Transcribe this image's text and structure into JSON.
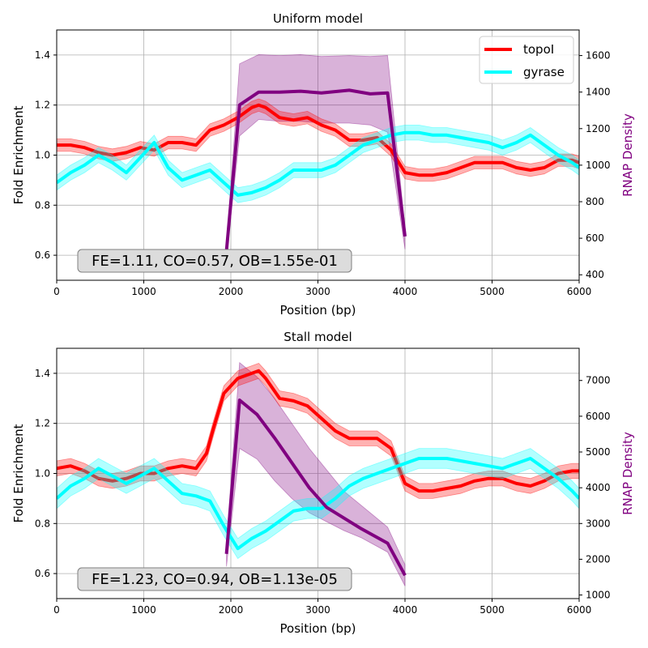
{
  "chart_data": [
    {
      "type": "line",
      "title": "Uniform model",
      "xlabel": "Position (bp)",
      "ylabel": "Fold Enrichment",
      "ylabel_right": "RNAP Density",
      "xlim": [
        0,
        6000
      ],
      "ylim": [
        0.5,
        1.5
      ],
      "ylim_right": [
        370,
        1740
      ],
      "x_ticks": [
        0,
        1000,
        2000,
        3000,
        4000,
        5000,
        6000
      ],
      "y_ticks": [
        0.6,
        0.8,
        1.0,
        1.2,
        1.4
      ],
      "y_ticks_right": [
        400,
        600,
        800,
        1000,
        1200,
        1400,
        1600
      ],
      "grid": true,
      "legend": "top-right",
      "annotation": "FE=1.11, CO=0.57, OB=1.55e-01",
      "series": [
        {
          "name": "topoI",
          "axis": "left",
          "color": "#ff0000",
          "x": [
            0,
            160,
            320,
            480,
            640,
            800,
            960,
            1120,
            1280,
            1440,
            1600,
            1760,
            1920,
            2080,
            2240,
            2320,
            2400,
            2560,
            2720,
            2880,
            3040,
            3200,
            3360,
            3520,
            3680,
            3840,
            4000,
            4160,
            4320,
            4480,
            4640,
            4800,
            4960,
            5120,
            5280,
            5440,
            5600,
            5760,
            5920,
            6000
          ],
          "y": [
            1.04,
            1.04,
            1.03,
            1.01,
            1.0,
            1.01,
            1.03,
            1.02,
            1.05,
            1.05,
            1.04,
            1.1,
            1.12,
            1.15,
            1.19,
            1.2,
            1.19,
            1.15,
            1.14,
            1.15,
            1.12,
            1.1,
            1.06,
            1.06,
            1.07,
            1.02,
            0.93,
            0.92,
            0.92,
            0.93,
            0.95,
            0.97,
            0.97,
            0.97,
            0.95,
            0.94,
            0.95,
            0.98,
            0.98,
            0.97
          ],
          "band": 0.025
        },
        {
          "name": "gyrase",
          "axis": "left",
          "color": "#00ffff",
          "x": [
            0,
            160,
            320,
            480,
            640,
            800,
            960,
            1120,
            1280,
            1440,
            1600,
            1760,
            1920,
            2080,
            2240,
            2400,
            2560,
            2720,
            2880,
            3040,
            3200,
            3360,
            3520,
            3680,
            3840,
            4000,
            4160,
            4320,
            4480,
            4640,
            4800,
            4960,
            5120,
            5280,
            5440,
            5600,
            5760,
            5920,
            6000
          ],
          "y": [
            0.89,
            0.93,
            0.96,
            1.0,
            0.97,
            0.93,
            0.99,
            1.05,
            0.95,
            0.9,
            0.92,
            0.94,
            0.89,
            0.84,
            0.85,
            0.87,
            0.9,
            0.94,
            0.94,
            0.94,
            0.96,
            1.0,
            1.04,
            1.06,
            1.08,
            1.09,
            1.09,
            1.08,
            1.08,
            1.07,
            1.06,
            1.05,
            1.03,
            1.05,
            1.08,
            1.04,
            1.0,
            0.97,
            0.95
          ],
          "band": 0.03
        },
        {
          "name": "RNAP Density",
          "axis": "right",
          "color": "#800080",
          "x": [
            1950,
            2100,
            2320,
            2560,
            2800,
            3040,
            3360,
            3600,
            3800,
            4000
          ],
          "y": [
            530,
            1330,
            1400,
            1400,
            1405,
            1395,
            1410,
            1390,
            1395,
            610
          ],
          "low": [
            500,
            1160,
            1250,
            1240,
            1240,
            1230,
            1230,
            1220,
            1180,
            540
          ],
          "high": [
            560,
            1555,
            1605,
            1600,
            1605,
            1595,
            1600,
            1595,
            1600,
            660
          ]
        }
      ]
    },
    {
      "type": "line",
      "title": "Stall model",
      "xlabel": "Position (bp)",
      "ylabel": "Fold Enrichment",
      "ylabel_right": "RNAP Density",
      "xlim": [
        0,
        6000
      ],
      "ylim": [
        0.5,
        1.5
      ],
      "ylim_right": [
        900,
        7900
      ],
      "x_ticks": [
        0,
        1000,
        2000,
        3000,
        4000,
        5000,
        6000
      ],
      "y_ticks": [
        0.6,
        0.8,
        1.0,
        1.2,
        1.4
      ],
      "y_ticks_right": [
        1000,
        2000,
        3000,
        4000,
        5000,
        6000,
        7000
      ],
      "grid": true,
      "annotation": "FE=1.23, CO=0.94, OB=1.13e-05",
      "series": [
        {
          "name": "topoI",
          "axis": "left",
          "color": "#ff0000",
          "x": [
            0,
            160,
            320,
            480,
            640,
            800,
            960,
            1120,
            1280,
            1440,
            1600,
            1720,
            1800,
            1920,
            2080,
            2240,
            2320,
            2400,
            2560,
            2720,
            2880,
            3040,
            3200,
            3360,
            3520,
            3680,
            3840,
            4000,
            4160,
            4320,
            4480,
            4640,
            4800,
            4960,
            5120,
            5280,
            5440,
            5600,
            5760,
            5920,
            6000
          ],
          "y": [
            1.02,
            1.03,
            1.01,
            0.98,
            0.97,
            0.98,
            1.0,
            1.0,
            1.02,
            1.03,
            1.02,
            1.08,
            1.18,
            1.32,
            1.38,
            1.4,
            1.41,
            1.38,
            1.3,
            1.29,
            1.27,
            1.22,
            1.17,
            1.14,
            1.14,
            1.14,
            1.1,
            0.96,
            0.93,
            0.93,
            0.94,
            0.95,
            0.97,
            0.98,
            0.98,
            0.96,
            0.95,
            0.97,
            1.0,
            1.01,
            1.01
          ],
          "band": 0.03
        },
        {
          "name": "gyrase",
          "axis": "left",
          "color": "#00ffff",
          "x": [
            0,
            160,
            320,
            480,
            640,
            800,
            960,
            1120,
            1280,
            1440,
            1600,
            1760,
            1920,
            2080,
            2240,
            2400,
            2560,
            2720,
            2880,
            3040,
            3200,
            3360,
            3520,
            3680,
            3840,
            4000,
            4160,
            4320,
            4480,
            4640,
            4800,
            4960,
            5120,
            5280,
            5440,
            5600,
            5760,
            5920,
            6000
          ],
          "y": [
            0.9,
            0.95,
            0.98,
            1.02,
            0.99,
            0.96,
            0.99,
            1.02,
            0.97,
            0.92,
            0.91,
            0.89,
            0.79,
            0.7,
            0.74,
            0.77,
            0.81,
            0.85,
            0.86,
            0.86,
            0.9,
            0.95,
            0.98,
            1.0,
            1.02,
            1.04,
            1.06,
            1.06,
            1.06,
            1.05,
            1.04,
            1.03,
            1.02,
            1.04,
            1.06,
            1.02,
            0.98,
            0.93,
            0.9
          ],
          "band": 0.04
        },
        {
          "name": "RNAP Density",
          "axis": "right",
          "color": "#800080",
          "x": [
            1950,
            2100,
            2300,
            2500,
            2700,
            2900,
            3100,
            3300,
            3500,
            3800,
            4000
          ],
          "y": [
            2150,
            6450,
            6050,
            5400,
            4700,
            4000,
            3450,
            3150,
            2850,
            2450,
            1550
          ],
          "low": [
            1800,
            5100,
            4800,
            4200,
            3700,
            3300,
            3050,
            2800,
            2600,
            2200,
            1250
          ],
          "high": [
            2500,
            7500,
            7100,
            6500,
            5800,
            5100,
            4500,
            3900,
            3500,
            2900,
            1850
          ]
        }
      ]
    }
  ]
}
